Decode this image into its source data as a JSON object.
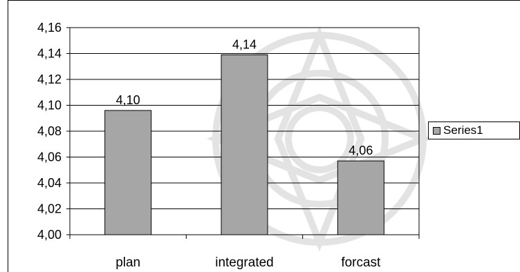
{
  "chart_data": {
    "type": "bar",
    "categories": [
      "plan",
      "integrated",
      "forcast"
    ],
    "series": [
      {
        "name": "Series1",
        "values": [
          4.096,
          4.139,
          4.057
        ]
      }
    ],
    "data_labels": [
      "4,10",
      "4,14",
      "4,06"
    ],
    "ylim": [
      4.0,
      4.16
    ],
    "y_ticks": [
      4.0,
      4.02,
      4.04,
      4.06,
      4.08,
      4.1,
      4.12,
      4.14,
      4.16
    ],
    "y_tick_labels": [
      "4,00",
      "4,02",
      "4,04",
      "4,06",
      "4,08",
      "4,10",
      "4,12",
      "4,14",
      "4,16"
    ],
    "grid": true,
    "legend_position": "right",
    "bar_color": "#a6a6a6"
  }
}
